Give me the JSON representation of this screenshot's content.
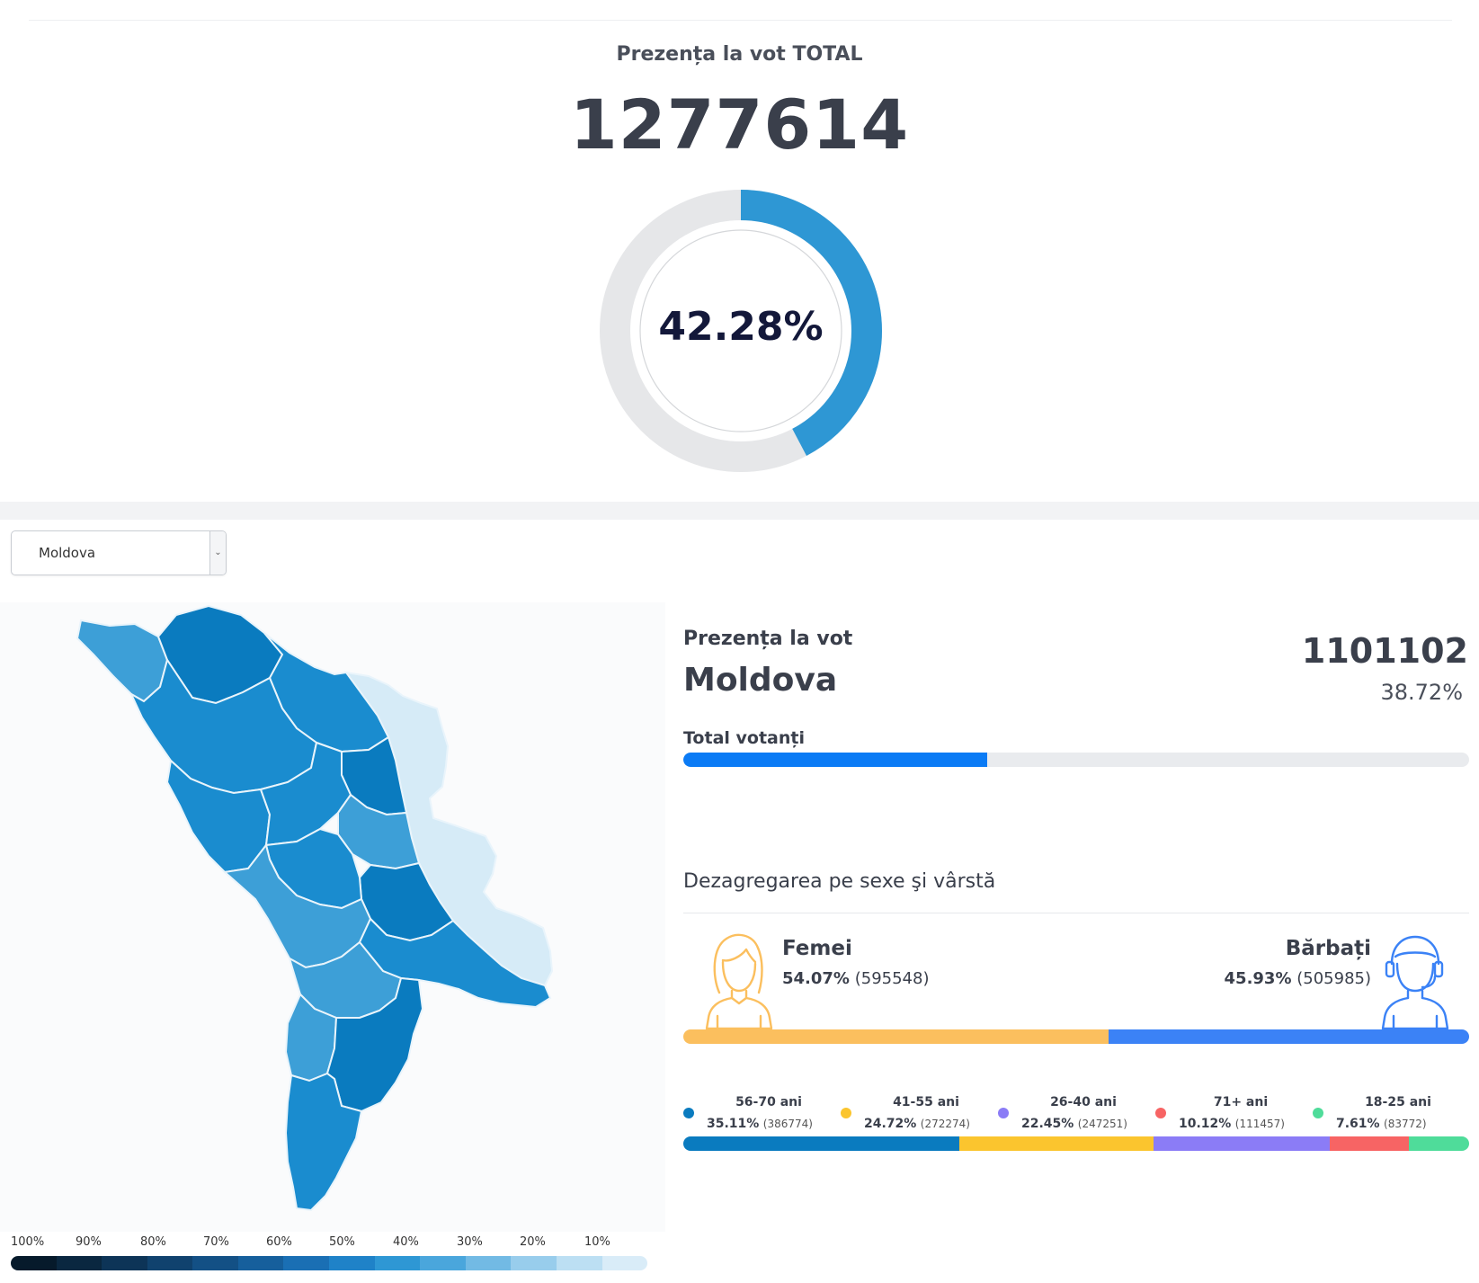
{
  "total": {
    "title": "Prezența la vot TOTAL",
    "count": "1277614",
    "percent_label": "42.28%",
    "percent_value": 42.28,
    "colors": {
      "arc": "#2e97d4",
      "track": "#e6e7e9"
    }
  },
  "selector": {
    "value": "Moldova"
  },
  "region": {
    "label": "Prezența la vot",
    "name": "Moldova",
    "count": "1101102",
    "percent": "38.72%",
    "total_label": "Total votanți",
    "progress": 38.72,
    "color": "#0b7bf5"
  },
  "map": {
    "legend_labels": [
      "100%",
      "90%",
      "80%",
      "70%",
      "60%",
      "50%",
      "40%",
      "30%",
      "20%",
      "10%"
    ],
    "legend_colors": [
      "#061a2b",
      "#0a2740",
      "#0d3457",
      "#10426e",
      "#135085",
      "#165f9c",
      "#1a6fb4",
      "#1f82c8",
      "#2e97d4",
      "#4aa6dc",
      "#72bae4",
      "#98cdec",
      "#bcdff3",
      "#d9ecf8"
    ],
    "colors": {
      "dark": "#0a7bbf",
      "medium": "#1a8ccf",
      "light": "#3d9fd7",
      "pale": "#d6ebf7",
      "border": "#e9f4fb"
    }
  },
  "breakdown": {
    "title": "Dezagregarea pe sexe şi vârstă",
    "female": {
      "label": "Femei",
      "percent": "54.07%",
      "count": "(595548)",
      "value": 54.07,
      "color": "#fbbf5e"
    },
    "male": {
      "label": "Bărbați",
      "percent": "45.93%",
      "count": "(505985)",
      "value": 45.93,
      "color": "#3b82f6"
    },
    "ages": [
      {
        "label": "56-70 ani",
        "percent": "35.11%",
        "count": "(386774)",
        "value": 35.11,
        "color": "#0a7bbf"
      },
      {
        "label": "41-55 ani",
        "percent": "24.72%",
        "count": "(272274)",
        "value": 24.72,
        "color": "#fbc52e"
      },
      {
        "label": "26-40 ani",
        "percent": "22.45%",
        "count": "(247251)",
        "value": 22.45,
        "color": "#8b7cf6"
      },
      {
        "label": "71+ ani",
        "percent": "10.12%",
        "count": "(111457)",
        "value": 10.12,
        "color": "#f76464"
      },
      {
        "label": "18-25 ani",
        "percent": "7.61%",
        "count": "(83772)",
        "value": 7.61,
        "color": "#4fdc9a"
      }
    ]
  }
}
